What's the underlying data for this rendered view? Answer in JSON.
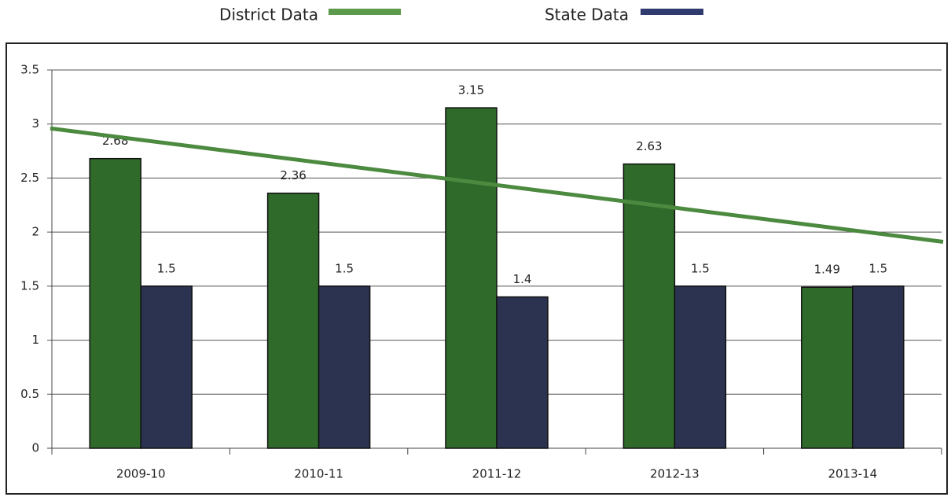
{
  "chart_data": {
    "type": "bar",
    "categories": [
      "2009-10",
      "2010-11",
      "2011-12",
      "2012-13",
      "2013-14"
    ],
    "series": [
      {
        "name": "District Data",
        "color": "#2f6a2a",
        "legend_color": "#5b9a4b",
        "values": [
          2.68,
          2.36,
          3.15,
          2.63,
          1.49
        ]
      },
      {
        "name": "State Data",
        "color": "#2b3350",
        "legend_color": "#2f3a6e",
        "values": [
          1.5,
          1.5,
          1.4,
          1.5,
          1.5
        ]
      }
    ],
    "trendline": {
      "color": "#4b8a3f",
      "values": [
        2.96,
        1.91
      ]
    },
    "ylim": [
      0,
      3.5
    ],
    "yticks": [
      0,
      0.5,
      1,
      1.5,
      2,
      2.5,
      3,
      3.5
    ],
    "grid": true,
    "legend": "top"
  }
}
